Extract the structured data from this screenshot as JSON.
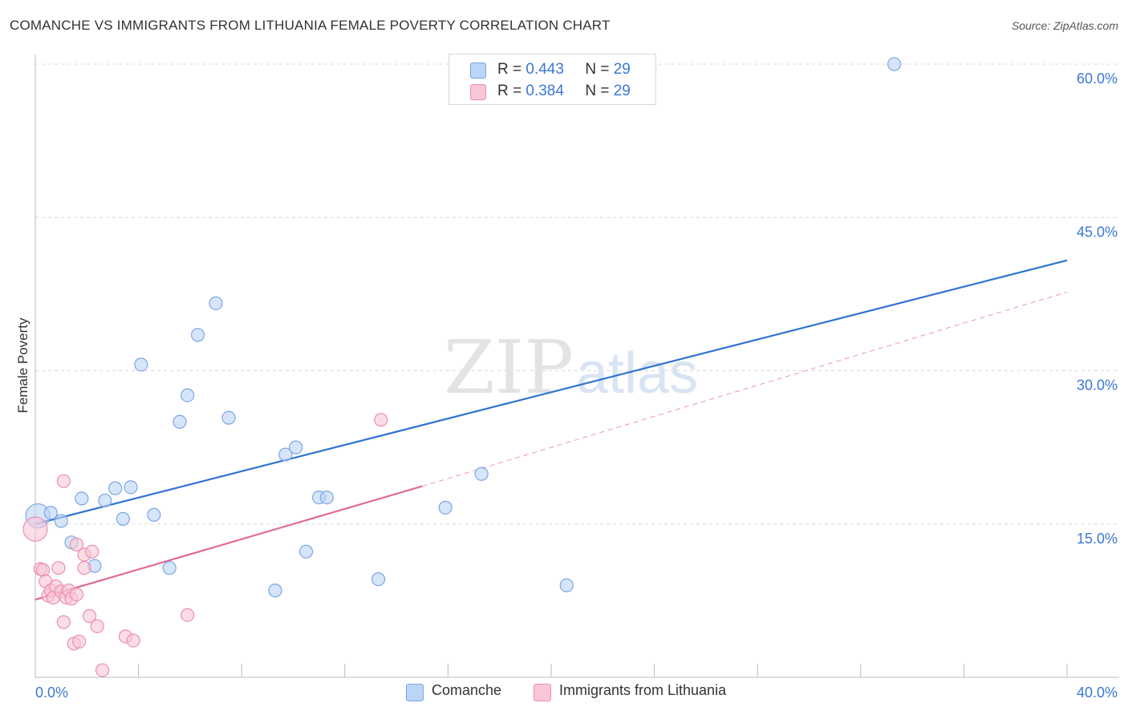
{
  "header": {
    "title": "COMANCHE VS IMMIGRANTS FROM LITHUANIA FEMALE POVERTY CORRELATION CHART",
    "source": "Source: ZipAtlas.com"
  },
  "watermark": {
    "zip": "ZIP",
    "atlas": "atlas"
  },
  "legend": {
    "series": [
      {
        "r_label": "R =",
        "r_value": "0.443",
        "n_label": "N =",
        "n_value": "29"
      },
      {
        "r_label": "R =",
        "r_value": "0.384",
        "n_label": "N =",
        "n_value": "29"
      }
    ]
  },
  "colors": {
    "comanche_fill": "#bcd4f5",
    "comanche_stroke": "#7aa6e6",
    "comanche_line": "#2f74d0",
    "lithuania_fill": "#f8c6d5",
    "lithuania_stroke": "#eb8fae",
    "lithuania_line": "#e26a93",
    "grid": "#d8d8d8",
    "axis_text": "#3b78d4"
  },
  "chart_data": {
    "type": "scatter",
    "title": "COMANCHE VS IMMIGRANTS FROM LITHUANIA FEMALE POVERTY CORRELATION CHART",
    "xlabel": "",
    "ylabel": "Female Poverty",
    "xlim": [
      0,
      40
    ],
    "ylim": [
      0,
      60
    ],
    "x_tick_labels": [
      "0.0%",
      "40.0%"
    ],
    "y_ticks": [
      15,
      30,
      45,
      60
    ],
    "y_tick_labels": [
      "15.0%",
      "30.0%",
      "45.0%",
      "60.0%"
    ],
    "grid": true,
    "series": [
      {
        "name": "Comanche",
        "points": [
          [
            0.1,
            15.8
          ],
          [
            0.6,
            16.1
          ],
          [
            1.0,
            15.3
          ],
          [
            1.4,
            13.2
          ],
          [
            1.8,
            17.5
          ],
          [
            2.3,
            10.9
          ],
          [
            2.7,
            17.3
          ],
          [
            3.1,
            18.5
          ],
          [
            3.4,
            15.5
          ],
          [
            3.7,
            18.6
          ],
          [
            4.1,
            30.6
          ],
          [
            4.6,
            15.9
          ],
          [
            5.2,
            10.7
          ],
          [
            5.6,
            25.0
          ],
          [
            5.9,
            27.6
          ],
          [
            6.3,
            33.5
          ],
          [
            7.0,
            36.6
          ],
          [
            7.5,
            25.4
          ],
          [
            9.3,
            8.5
          ],
          [
            9.7,
            21.8
          ],
          [
            10.1,
            22.5
          ],
          [
            10.5,
            12.3
          ],
          [
            11.0,
            17.6
          ],
          [
            11.3,
            17.6
          ],
          [
            13.3,
            9.6
          ],
          [
            15.9,
            16.6
          ],
          [
            17.3,
            19.9
          ],
          [
            20.6,
            9.0
          ],
          [
            33.3,
            60.0
          ]
        ],
        "trend": {
          "x0": 0,
          "y0": 15.0,
          "x1": 40,
          "y1": 40.8,
          "style": "solid"
        }
      },
      {
        "name": "Immigrants from Lithuania",
        "points": [
          [
            0.0,
            14.5
          ],
          [
            0.2,
            10.6
          ],
          [
            0.3,
            10.5
          ],
          [
            0.4,
            9.4
          ],
          [
            0.5,
            8.0
          ],
          [
            0.6,
            8.5
          ],
          [
            0.7,
            7.8
          ],
          [
            0.8,
            8.9
          ],
          [
            0.9,
            10.7
          ],
          [
            1.0,
            8.4
          ],
          [
            1.1,
            5.4
          ],
          [
            1.1,
            19.2
          ],
          [
            1.2,
            7.8
          ],
          [
            1.3,
            8.5
          ],
          [
            1.4,
            7.7
          ],
          [
            1.5,
            3.3
          ],
          [
            1.6,
            13.0
          ],
          [
            1.6,
            8.1
          ],
          [
            1.7,
            3.5
          ],
          [
            1.9,
            10.7
          ],
          [
            1.9,
            12.0
          ],
          [
            2.1,
            6.0
          ],
          [
            2.2,
            12.3
          ],
          [
            2.4,
            5.0
          ],
          [
            2.6,
            0.7
          ],
          [
            3.5,
            4.0
          ],
          [
            3.8,
            3.6
          ],
          [
            5.9,
            6.1
          ],
          [
            13.4,
            25.2
          ]
        ],
        "trend": {
          "x0": 0,
          "y0": 7.6,
          "x1": 15.0,
          "y1": 18.7,
          "style": "solid",
          "extension": {
            "x1": 40,
            "y1": 37.7,
            "style": "dashed"
          }
        }
      }
    ]
  },
  "bottom_legend": {
    "items": [
      {
        "label": "Comanche"
      },
      {
        "label": "Immigrants from Lithuania"
      }
    ]
  }
}
